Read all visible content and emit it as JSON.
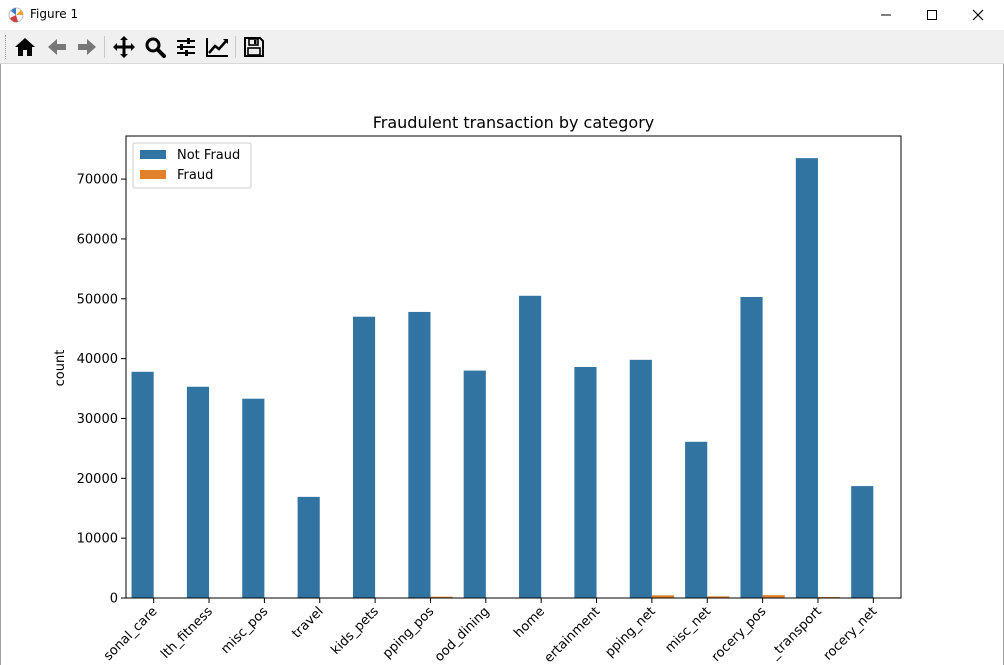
{
  "window": {
    "title": "Figure 1",
    "app_icon": "matplotlib-figure-icon",
    "controls": [
      "minimize-icon",
      "maximize-icon",
      "close-icon"
    ]
  },
  "toolbar": {
    "buttons": [
      {
        "name": "home-button",
        "icon": "home-icon"
      },
      {
        "name": "back-button",
        "icon": "arrow-left-icon"
      },
      {
        "name": "forward-button",
        "icon": "arrow-right-icon"
      },
      {
        "name": "pan-button",
        "icon": "move-icon"
      },
      {
        "name": "zoom-button",
        "icon": "magnifier-icon"
      },
      {
        "name": "configure-subplots-button",
        "icon": "sliders-icon"
      },
      {
        "name": "edit-axis-button",
        "icon": "line-chart-icon"
      },
      {
        "name": "save-button",
        "icon": "floppy-disk-icon"
      }
    ]
  },
  "chart_data": {
    "type": "bar",
    "title": "Fraudulent transaction by category",
    "xlabel": "",
    "ylabel": "count",
    "categories": [
      "personal_care",
      "health_fitness",
      "misc_pos",
      "travel",
      "kids_pets",
      "shopping_pos",
      "food_dining",
      "home",
      "entertainment",
      "shopping_net",
      "misc_net",
      "grocery_pos",
      "gas_transport",
      "grocery_net"
    ],
    "tick_labels": [
      "sonal_care",
      "lth_fitness",
      "misc_pos",
      "travel",
      "kids_pets",
      "pping_pos",
      "ood_dining",
      "home",
      "ertainment",
      "pping_net",
      "misc_net",
      "rocery_pos",
      "_transport",
      "rocery_net"
    ],
    "series": [
      {
        "name": "Not Fraud",
        "color": "#3274a1",
        "values": [
          37800,
          35300,
          33300,
          16900,
          47000,
          47800,
          38000,
          50500,
          38600,
          39800,
          26100,
          50300,
          73500,
          18700
        ]
      },
      {
        "name": "Fraud",
        "color": "#e1812c",
        "values": [
          30,
          20,
          20,
          10,
          30,
          220,
          30,
          30,
          20,
          450,
          280,
          480,
          160,
          20
        ]
      }
    ],
    "yticks": [
      0,
      10000,
      20000,
      30000,
      40000,
      50000,
      60000,
      70000
    ],
    "ylim": [
      0,
      77200
    ],
    "legend": "upper-left",
    "grid": false
  }
}
